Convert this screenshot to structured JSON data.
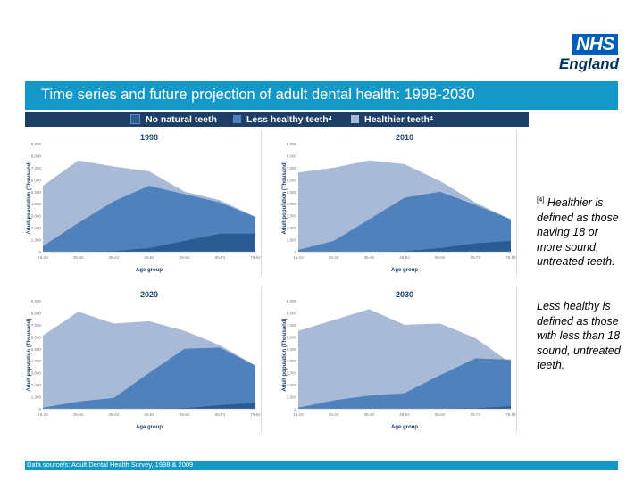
{
  "logo": {
    "org": "NHS",
    "region": "England"
  },
  "title": "Time series and future projection of adult dental health: 1998-2030",
  "legend": [
    {
      "label": "No natural teeth",
      "sup": "",
      "color": "#2a5b93"
    },
    {
      "label": "Less healthy teeth",
      "sup": "4",
      "color": "#4f81bd"
    },
    {
      "label": "Healthier teeth",
      "sup": "4",
      "color": "#a9bad7"
    }
  ],
  "notes": [
    {
      "ref": "[4]",
      "text": " Healthier is defined as those having 18 or more sound, untreated teeth."
    },
    {
      "ref": "",
      "text": " Less healthy is defined as those with less than 18 sound, untreated teeth."
    }
  ],
  "footer": "Data source/s: Adult Dental Health Survey, 1998 & 2009",
  "colors": {
    "none": "#2a5b93",
    "less": "#4f81bd",
    "healthier": "#a9bad7"
  },
  "chart_data": [
    {
      "type": "area",
      "title": "1998",
      "xlabel": "Age group",
      "ylabel": "Adult population (Thousand)",
      "categories": [
        "16-24",
        "25-34",
        "35-44",
        "45-54",
        "55-64",
        "65-74",
        "75-84"
      ],
      "ylim": [
        0,
        9000
      ],
      "yticks": [
        "0",
        "1,000",
        "2,000",
        "3,000",
        "4,000",
        "5,000",
        "6,000",
        "7,000",
        "8,000",
        "9,000"
      ],
      "series": [
        {
          "name": "No natural teeth",
          "values": [
            0,
            0,
            50,
            300,
            900,
            1500,
            1500
          ]
        },
        {
          "name": "Less healthy teeth",
          "values": [
            450,
            2400,
            4200,
            5500,
            4800,
            4100,
            2900
          ]
        },
        {
          "name": "Healthier teeth",
          "values": [
            5500,
            7600,
            7100,
            6700,
            5000,
            4300,
            2900
          ]
        }
      ]
    },
    {
      "type": "area",
      "title": "2010",
      "xlabel": "Age group",
      "ylabel": "Adult population (Thousand)",
      "categories": [
        "16-24",
        "25-34",
        "35-44",
        "45-54",
        "55-64",
        "65-74",
        "75-84"
      ],
      "ylim": [
        0,
        9000
      ],
      "yticks": [
        "0",
        "1,000",
        "2,000",
        "3,000",
        "4,000",
        "5,000",
        "6,000",
        "7,000",
        "8,000",
        "9,000"
      ],
      "series": [
        {
          "name": "No natural teeth",
          "values": [
            0,
            0,
            0,
            50,
            300,
            700,
            900
          ]
        },
        {
          "name": "Less healthy teeth",
          "values": [
            150,
            900,
            2700,
            4500,
            5000,
            3900,
            2700
          ]
        },
        {
          "name": "Healthier teeth",
          "values": [
            6600,
            7000,
            7600,
            7300,
            5900,
            4100,
            2700
          ]
        }
      ]
    },
    {
      "type": "area",
      "title": "2020",
      "xlabel": "Age group",
      "ylabel": "Adult population (Thousand)",
      "categories": [
        "16-24",
        "25-34",
        "35-44",
        "45-54",
        "55-64",
        "65-74",
        "75-84"
      ],
      "ylim": [
        0,
        9000
      ],
      "yticks": [
        "0",
        "1,000",
        "2,000",
        "3,000",
        "4,000",
        "5,000",
        "6,000",
        "7,000",
        "8,000",
        "9,000"
      ],
      "series": [
        {
          "name": "No natural teeth",
          "values": [
            0,
            0,
            0,
            0,
            50,
            300,
            500
          ]
        },
        {
          "name": "Less healthy teeth",
          "values": [
            100,
            600,
            900,
            3000,
            5000,
            5100,
            3600
          ]
        },
        {
          "name": "Healthier teeth",
          "values": [
            6100,
            8100,
            7100,
            7300,
            6500,
            5300,
            3600
          ]
        }
      ]
    },
    {
      "type": "area",
      "title": "2030",
      "xlabel": "Age group",
      "ylabel": "Adult population (Thousand)",
      "categories": [
        "16-24",
        "25-34",
        "35-44",
        "45-54",
        "55-64",
        "65-74",
        "75-84"
      ],
      "ylim": [
        0,
        9000
      ],
      "yticks": [
        "0",
        "1,000",
        "2,000",
        "3,000",
        "4,000",
        "5,000",
        "6,000",
        "7,000",
        "8,000",
        "9,000"
      ],
      "series": [
        {
          "name": "No natural teeth",
          "values": [
            0,
            0,
            0,
            0,
            0,
            50,
            200
          ]
        },
        {
          "name": "Less healthy teeth",
          "values": [
            100,
            700,
            1100,
            1300,
            2800,
            4200,
            4100
          ]
        },
        {
          "name": "Healthier teeth",
          "values": [
            6500,
            7400,
            8300,
            7000,
            7100,
            5900,
            3800
          ]
        }
      ]
    }
  ]
}
